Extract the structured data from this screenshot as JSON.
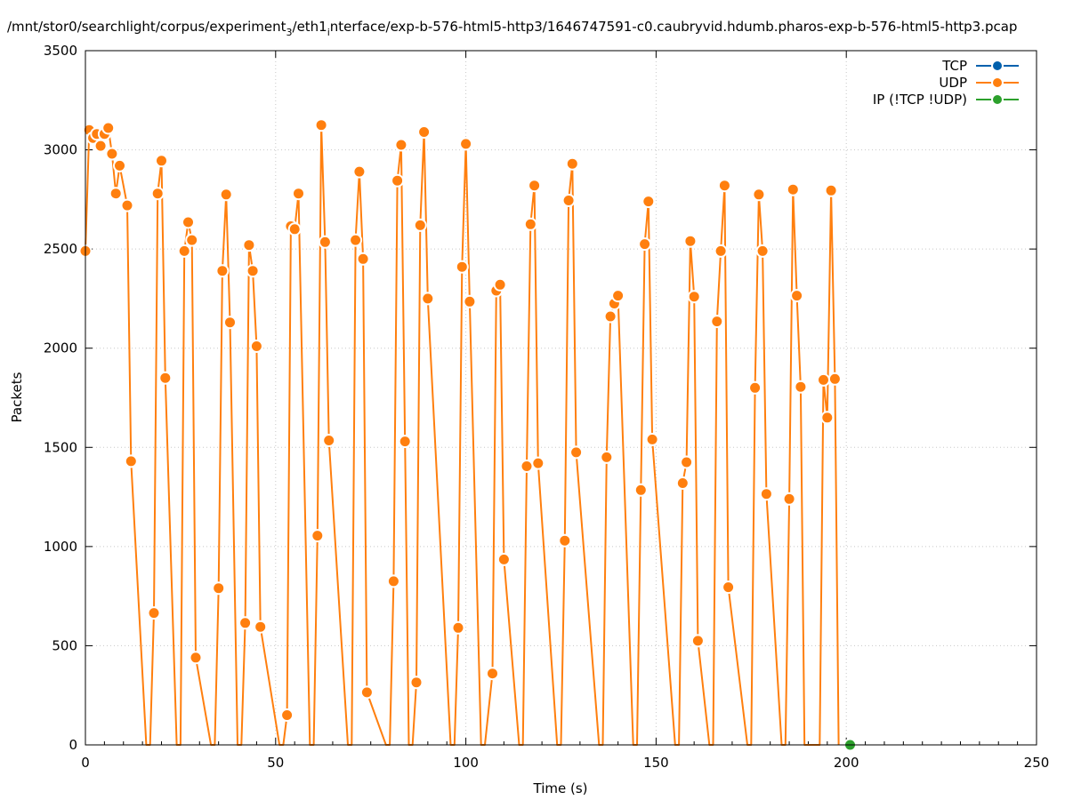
{
  "chart_data": {
    "type": "line",
    "title": "/mnt/stor0/searchlight/corpus/experiment_3/eth1_interface/exp-b-576-html5-http3/1646747591-c0.caubryvid.hdumb.pharos-exp-b-576-html5-http3.pcap",
    "title_parts": {
      "p1": "/mnt/stor0/searchlight/corpus/experiment",
      "sub1": "3",
      "p2": "/eth1",
      "sub2": "i",
      "p3": "nterface/exp-b-576-html5-http3/1646747591-c0.caubryvid.hdumb.pharos-exp-b-576-html5-http3.pcap"
    },
    "xlabel": "Time (s)",
    "ylabel": "Packets",
    "xlim": [
      0,
      250
    ],
    "ylim": [
      0,
      3500
    ],
    "xticks": [
      0,
      50,
      100,
      150,
      200,
      250
    ],
    "yticks": [
      0,
      500,
      1000,
      1500,
      2000,
      2500,
      3000,
      3500
    ],
    "grid": true,
    "legend_position": "top-right",
    "series": [
      {
        "name": "TCP",
        "color": "#0060ad",
        "x": [],
        "y": []
      },
      {
        "name": "UDP",
        "color": "#ff7f0e",
        "x": [
          0,
          1,
          2,
          3,
          4,
          5,
          6,
          7,
          8,
          9,
          11,
          12,
          16,
          17,
          18,
          19,
          20,
          21,
          24,
          25,
          26,
          27,
          28,
          29,
          33,
          34,
          35,
          36,
          37,
          38,
          40,
          41,
          42,
          43,
          44,
          45,
          46,
          51,
          52,
          53,
          54,
          55,
          56,
          59,
          60,
          61,
          62,
          63,
          64,
          69,
          70,
          71,
          72,
          73,
          74,
          79,
          80,
          81,
          82,
          83,
          84,
          85,
          86,
          87,
          88,
          89,
          90,
          96,
          97,
          98,
          99,
          100,
          101,
          104,
          105,
          107,
          108,
          109,
          110,
          114,
          115,
          116,
          117,
          118,
          119,
          124,
          125,
          126,
          127,
          128,
          129,
          135,
          136,
          137,
          138,
          139,
          140,
          144,
          145,
          146,
          147,
          148,
          149,
          155,
          156,
          157,
          158,
          159,
          160,
          161,
          164,
          165,
          166,
          167,
          168,
          169,
          174,
          175,
          176,
          177,
          178,
          179,
          183,
          184,
          185,
          186,
          187,
          188,
          189,
          193,
          194,
          195,
          196,
          197,
          198
        ],
        "y": [
          2490,
          3100,
          3060,
          3080,
          3020,
          3080,
          3110,
          2980,
          2780,
          2920,
          2720,
          1430,
          0,
          0,
          665,
          2780,
          2945,
          1850,
          0,
          0,
          2490,
          2635,
          2545,
          440,
          0,
          0,
          790,
          2390,
          2775,
          2130,
          0,
          0,
          615,
          2520,
          2390,
          2010,
          595,
          0,
          0,
          150,
          2615,
          2600,
          2780,
          0,
          0,
          1055,
          3125,
          2535,
          1535,
          0,
          0,
          2545,
          2890,
          2450,
          265,
          0,
          0,
          825,
          2845,
          3025,
          1530,
          0,
          0,
          315,
          2620,
          3090,
          2250,
          0,
          0,
          590,
          2410,
          3030,
          2235,
          0,
          0,
          360,
          2290,
          2320,
          935,
          0,
          0,
          1405,
          2625,
          2820,
          1420,
          0,
          0,
          1030,
          2745,
          2930,
          1475,
          0,
          0,
          1450,
          2160,
          2225,
          2265,
          0,
          0,
          1285,
          2525,
          2740,
          1540,
          0,
          0,
          1320,
          1425,
          2540,
          2260,
          525,
          0,
          0,
          2135,
          2490,
          2820,
          795,
          0,
          0,
          1800,
          2775,
          2490,
          1265,
          0,
          0,
          1240,
          2800,
          2265,
          1805,
          0,
          0,
          1840,
          1650,
          2795,
          1845,
          0
        ]
      },
      {
        "name": "IP (!TCP  !UDP)",
        "color": "#2ca02c",
        "x": [
          201
        ],
        "y": [
          0
        ]
      }
    ]
  }
}
